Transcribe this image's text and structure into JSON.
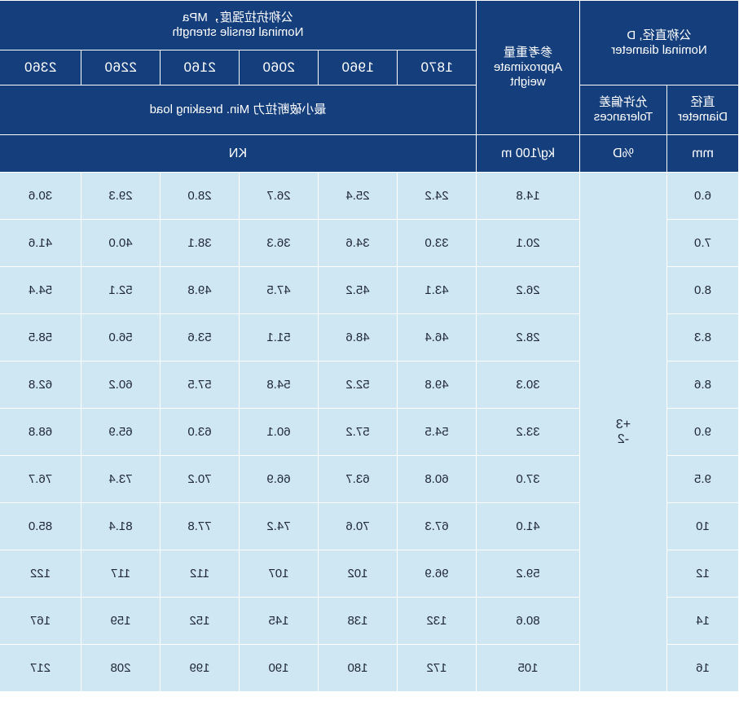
{
  "header": {
    "nominal_diameter_cn": "公称直径, D",
    "nominal_diameter_en": "Nominal diameter",
    "diameter_cn": "直径",
    "diameter_en": "Diameter",
    "tolerances_cn": "允许偏差",
    "tolerances_en": "Tolerances",
    "weight_cn": "参考重量",
    "weight_en_1": "Approximate",
    "weight_en_2": "weight",
    "tensile_cn": "公称抗拉强度，MPa",
    "tensile_en": "Nominal tensile strength",
    "breaking_load": "最小破断拉力  Min. breaking load",
    "strengths": [
      "1870",
      "1960",
      "2060",
      "2160",
      "2260",
      "2360"
    ],
    "unit_mm": "mm",
    "unit_pct": "%D",
    "unit_weight": "kg/100 m",
    "unit_kn": "KN"
  },
  "tolerance": {
    "plus": "+3",
    "minus": "-2"
  },
  "rows": [
    {
      "d": "6.0",
      "w": "14.8",
      "v": [
        "24.2",
        "25.4",
        "26.7",
        "28.0",
        "29.3",
        "30.6"
      ]
    },
    {
      "d": "7.0",
      "w": "20.1",
      "v": [
        "33.0",
        "34.6",
        "36.3",
        "38.1",
        "40.0",
        "41.6"
      ]
    },
    {
      "d": "8.0",
      "w": "26.2",
      "v": [
        "43.1",
        "45.2",
        "47.5",
        "49.8",
        "52.1",
        "54.4"
      ]
    },
    {
      "d": "8.3",
      "w": "28.2",
      "v": [
        "46.4",
        "48.6",
        "51.1",
        "53.6",
        "56.0",
        "58.5"
      ]
    },
    {
      "d": "8.6",
      "w": "30.3",
      "v": [
        "49.8",
        "52.2",
        "54.8",
        "57.5",
        "60.2",
        "62.8"
      ]
    },
    {
      "d": "9.0",
      "w": "33.2",
      "v": [
        "54.5",
        "57.2",
        "60.1",
        "63.0",
        "65.9",
        "68.8"
      ]
    },
    {
      "d": "9.5",
      "w": "37.0",
      "v": [
        "60.8",
        "63.7",
        "66.9",
        "70.2",
        "73.4",
        "76.7"
      ]
    },
    {
      "d": "10",
      "w": "41.0",
      "v": [
        "67.3",
        "70.6",
        "74.2",
        "77.8",
        "81.4",
        "85.0"
      ]
    },
    {
      "d": "12",
      "w": "59.2",
      "v": [
        "96.9",
        "102",
        "107",
        "112",
        "117",
        "122"
      ]
    },
    {
      "d": "14",
      "w": "80.6",
      "v": [
        "132",
        "138",
        "145",
        "152",
        "159",
        "167"
      ]
    },
    {
      "d": "16",
      "w": "105",
      "v": [
        "172",
        "180",
        "190",
        "199",
        "208",
        "217"
      ]
    }
  ]
}
